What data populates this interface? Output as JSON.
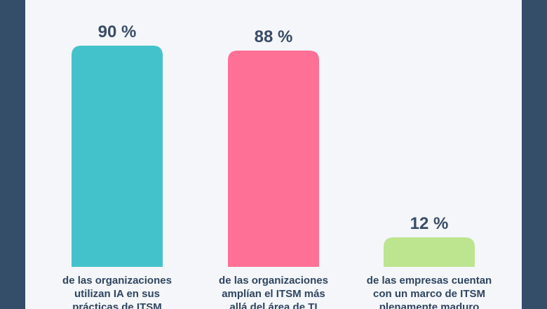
{
  "chart_data": {
    "type": "bar",
    "categories": [
      "de las organizaciones\nutilizan IA en sus\nprácticas de ITSM",
      "de las organizaciones\namplían el ITSM más\nallá del área de TI",
      "de las empresas cuentan\ncon un marco de ITSM\nplenamente maduro"
    ],
    "values": [
      90,
      88,
      12
    ],
    "data_labels": [
      "90 %",
      "88 %",
      "12 %"
    ],
    "colors": [
      "#44c2cb",
      "#fe7096",
      "#bde48e"
    ],
    "ylim": [
      0,
      100
    ],
    "grid": false,
    "legend": false
  }
}
